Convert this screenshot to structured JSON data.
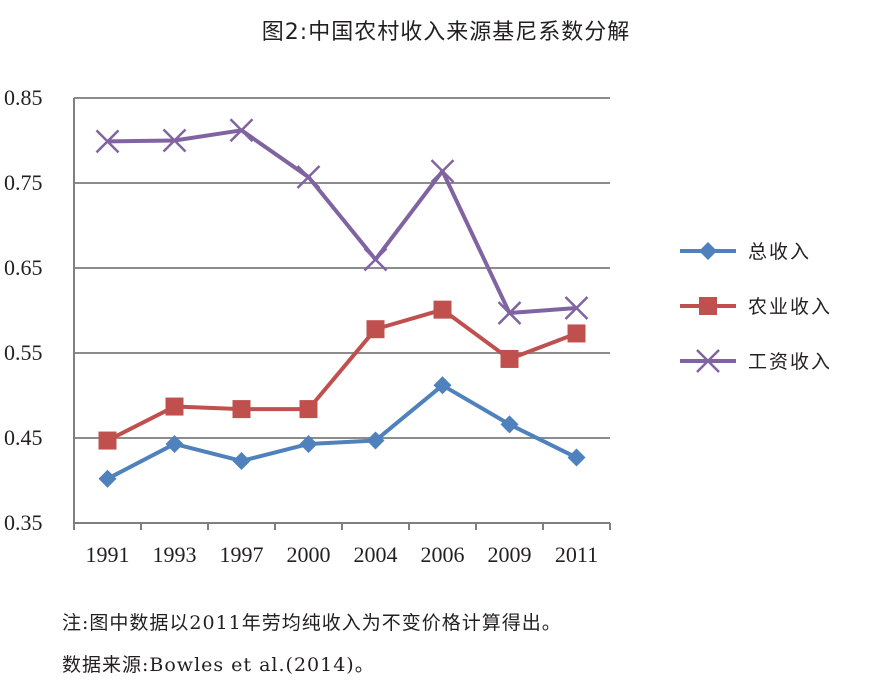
{
  "chart_data": {
    "type": "line",
    "title": "图2:中国农村收入来源基尼系数分解",
    "categories": [
      "1991",
      "1993",
      "1997",
      "2000",
      "2004",
      "2006",
      "2009",
      "2011"
    ],
    "ylim": [
      0.35,
      0.85
    ],
    "yticks": [
      "0.85",
      "0.75",
      "0.65",
      "0.55",
      "0.45",
      "0.35"
    ],
    "grid": true,
    "legend_position": "right",
    "series": [
      {
        "name": "总收入",
        "color": "#4f81bd",
        "marker": "diamond",
        "values": [
          0.402,
          0.443,
          0.423,
          0.443,
          0.447,
          0.512,
          0.466,
          0.427
        ]
      },
      {
        "name": "农业收入",
        "color": "#c0504d",
        "marker": "square",
        "values": [
          0.447,
          0.487,
          0.484,
          0.484,
          0.578,
          0.601,
          0.543,
          0.573
        ]
      },
      {
        "name": "工资收入",
        "color": "#8064a2",
        "marker": "x",
        "values": [
          0.799,
          0.8,
          0.812,
          0.757,
          0.66,
          0.764,
          0.597,
          0.603
        ]
      }
    ]
  },
  "notes": {
    "note1": "注:图中数据以2011年劳均纯收入为不变价格计算得出。",
    "note2": "数据来源:Bowles et al.(2014)。"
  }
}
